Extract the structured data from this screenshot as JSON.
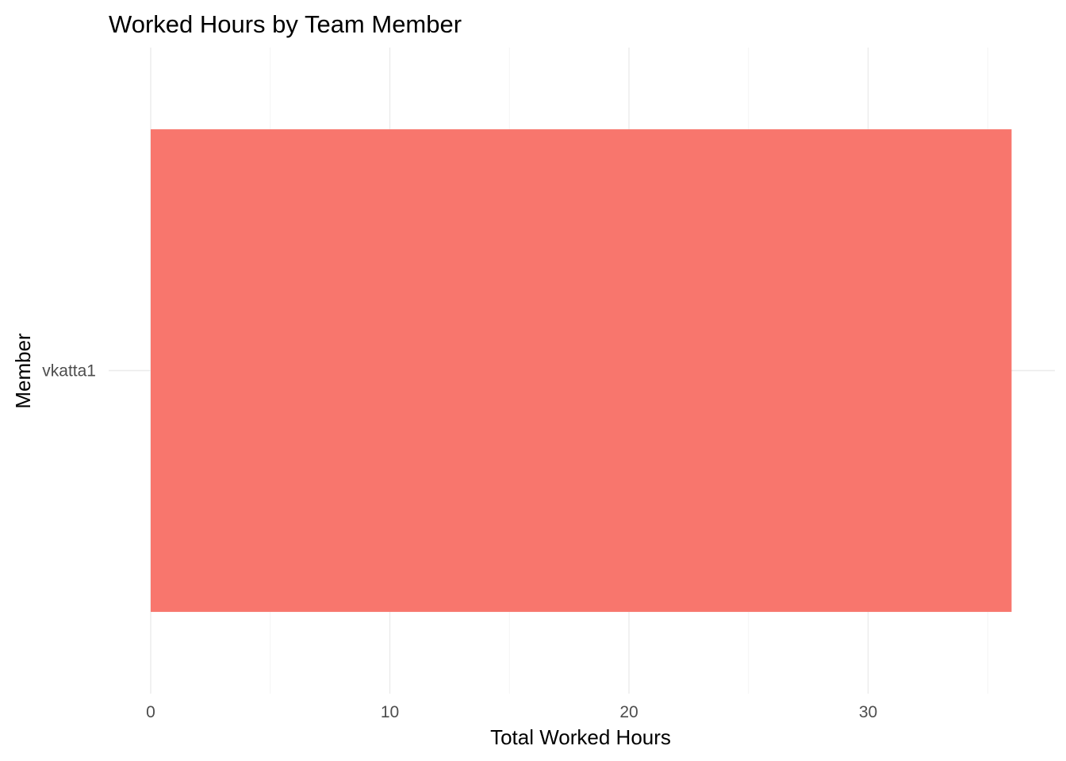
{
  "chart_data": {
    "type": "bar",
    "orientation": "horizontal",
    "title": "Worked Hours by Team Member",
    "xlabel": "Total Worked Hours",
    "ylabel": "Member",
    "categories": [
      "vkatta1"
    ],
    "values": [
      36
    ],
    "xlim": [
      0,
      36
    ],
    "x_ticks": [
      0,
      10,
      20,
      30
    ],
    "x_minor_ticks": [
      5,
      15,
      25,
      35
    ],
    "bar_color": "#F8766D",
    "grid": true,
    "legend": "none"
  }
}
